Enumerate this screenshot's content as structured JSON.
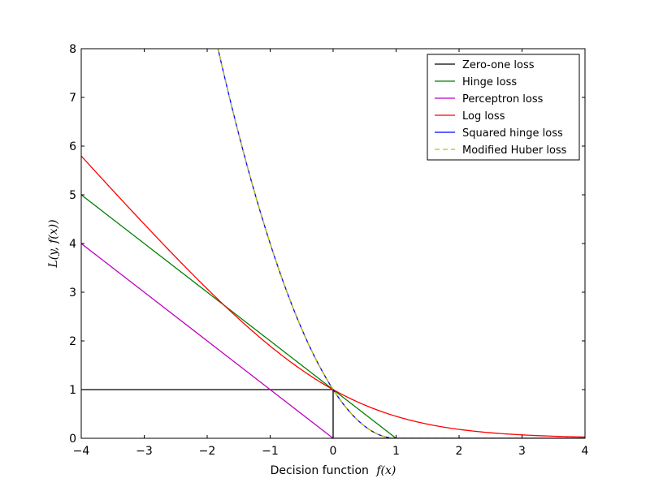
{
  "chart_data": {
    "type": "line",
    "title": "",
    "xlabel": "Decision function",
    "xlabel_math": "f(x)",
    "ylabel": "L(y, f(x))",
    "xlim": [
      -4,
      4
    ],
    "ylim": [
      0,
      8
    ],
    "x_ticks": [
      "−4",
      "−3",
      "−2",
      "−1",
      "0",
      "1",
      "2",
      "3",
      "4"
    ],
    "y_ticks": [
      "0",
      "1",
      "2",
      "3",
      "4",
      "5",
      "6",
      "7",
      "8"
    ],
    "grid": false,
    "legend_position": "top-right",
    "series": [
      {
        "name": "Zero-one loss",
        "color": "#000000",
        "dash": "solid",
        "x": [
          -4,
          0,
          0,
          4
        ],
        "y": [
          1,
          1,
          0,
          0
        ]
      },
      {
        "name": "Hinge loss",
        "color": "#008000",
        "dash": "solid",
        "x": [
          -4,
          -3,
          -2,
          -1,
          0,
          1,
          2,
          3,
          4
        ],
        "y": [
          5,
          4,
          3,
          2,
          1,
          0,
          0,
          0,
          0
        ]
      },
      {
        "name": "Perceptron loss",
        "color": "#bf00bf",
        "dash": "solid",
        "x": [
          -4,
          -3,
          -2,
          -1,
          0,
          1,
          2,
          3,
          4
        ],
        "y": [
          4,
          3,
          2,
          1,
          0,
          0,
          0,
          0,
          0
        ]
      },
      {
        "name": "Log loss",
        "color": "#ff0000",
        "dash": "solid",
        "x": [
          -4,
          -3.5,
          -3,
          -2.5,
          -2,
          -1.5,
          -1,
          -0.5,
          0,
          0.5,
          1,
          1.5,
          2,
          2.5,
          3,
          3.5,
          4
        ],
        "y": [
          5.79,
          5.1,
          4.42,
          3.75,
          3.09,
          2.45,
          1.9,
          1.4,
          1.0,
          0.68,
          0.45,
          0.29,
          0.18,
          0.11,
          0.07,
          0.04,
          0.03
        ]
      },
      {
        "name": "Squared hinge loss",
        "color": "#0000ff",
        "dash": "solid",
        "x": [
          -1.83,
          -1.5,
          -1,
          -0.5,
          0,
          0.5,
          1,
          2,
          3,
          4
        ],
        "y": [
          8.0,
          6.25,
          4.0,
          2.25,
          1.0,
          0.25,
          0,
          0,
          0,
          0
        ]
      },
      {
        "name": "Modified Huber loss",
        "color": "#bfbf00",
        "dash": "dashed",
        "x": [
          -2,
          -1.5,
          -1,
          -0.5,
          0,
          0.5,
          1,
          2,
          3,
          4
        ],
        "y": [
          8.0,
          6.25,
          4.0,
          2.25,
          1.0,
          0.25,
          0,
          0,
          0,
          0
        ]
      }
    ]
  }
}
